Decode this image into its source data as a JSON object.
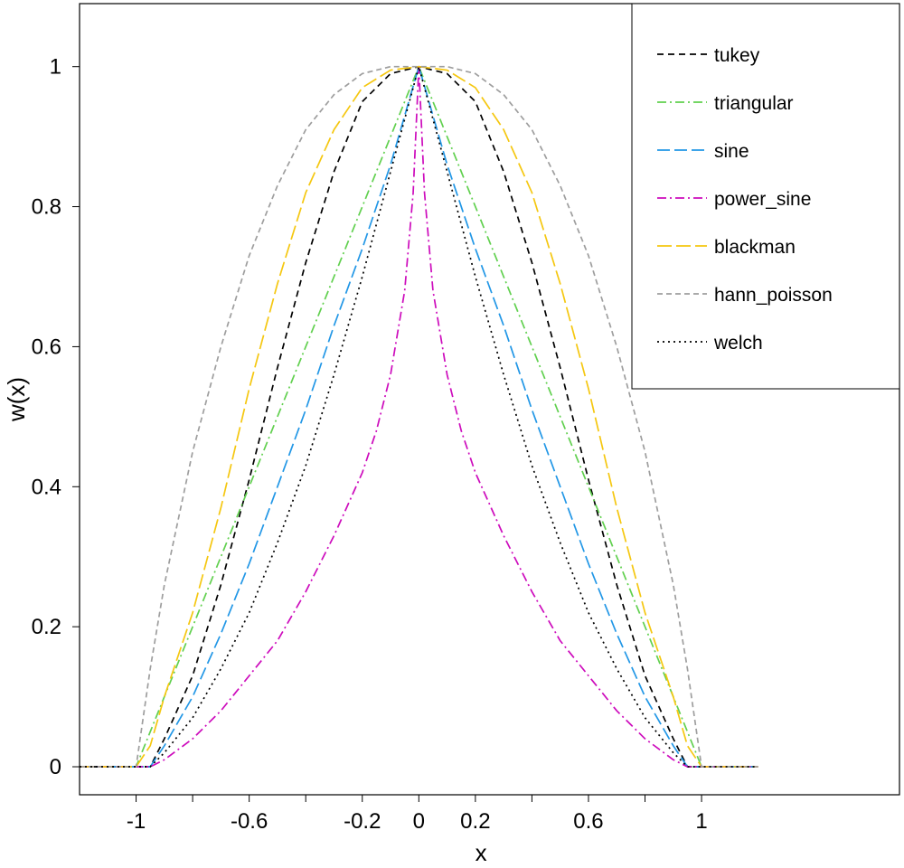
{
  "chart_data": {
    "type": "line",
    "title": "",
    "xlabel": "x",
    "ylabel": "w(x)",
    "xlim": [
      -1.2,
      1.7
    ],
    "ylim": [
      -0.04,
      1.09
    ],
    "x_ticks": [
      -1,
      -0.8,
      -0.6,
      -0.4,
      -0.2,
      0,
      0.2,
      0.4,
      0.6,
      0.8,
      1
    ],
    "x_tick_labels": [
      "-1",
      "",
      "-0.6",
      "",
      "-0.2",
      "0",
      "0.2",
      "",
      "0.6",
      "",
      "1"
    ],
    "y_ticks": [
      0,
      0.2,
      0.4,
      0.6,
      0.8,
      1
    ],
    "y_tick_labels": [
      "0",
      "0.2",
      "0.4",
      "0.6",
      "0.8",
      "1"
    ],
    "grid": false,
    "legend_position": "top-right",
    "x_domain": [
      -1.2,
      1.2
    ],
    "series": [
      {
        "name": "tukey",
        "color": "#000000",
        "dash": "7,5",
        "x": [
          -1.2,
          -1,
          -0.95,
          -0.9,
          -0.8,
          -0.7,
          -0.6,
          -0.5,
          -0.4,
          -0.3,
          -0.2,
          -0.1,
          0,
          0.1,
          0.2,
          0.3,
          0.4,
          0.5,
          0.6,
          0.7,
          0.8,
          0.9,
          0.95,
          1,
          1.2
        ],
        "y": [
          0,
          0,
          0.0,
          0.04,
          0.13,
          0.26,
          0.41,
          0.57,
          0.72,
          0.85,
          0.95,
          0.99,
          1,
          0.99,
          0.95,
          0.85,
          0.72,
          0.57,
          0.41,
          0.26,
          0.13,
          0.04,
          0.0,
          0,
          0
        ]
      },
      {
        "name": "triangular",
        "color": "#61d04f",
        "dash": "10,4,2,4",
        "x": [
          -1.2,
          -1,
          -0.5,
          0,
          0.5,
          1,
          1.2
        ],
        "y": [
          0,
          0,
          0.5,
          1,
          0.5,
          0,
          0
        ]
      },
      {
        "name": "sine",
        "color": "#2297e6",
        "dash": "14,5",
        "x": [
          -1.2,
          -0.95,
          -0.9,
          -0.8,
          -0.7,
          -0.6,
          -0.5,
          -0.4,
          -0.3,
          -0.2,
          -0.1,
          0,
          0.1,
          0.2,
          0.3,
          0.4,
          0.5,
          0.6,
          0.7,
          0.8,
          0.9,
          0.95,
          1.2
        ],
        "y": [
          0,
          0,
          0.03,
          0.1,
          0.19,
          0.29,
          0.4,
          0.51,
          0.63,
          0.74,
          0.86,
          1,
          0.86,
          0.74,
          0.63,
          0.51,
          0.4,
          0.29,
          0.19,
          0.1,
          0.03,
          0,
          0
        ]
      },
      {
        "name": "power_sine",
        "color": "#cd0bbc",
        "dash": "10,4,2,4",
        "x": [
          -1.2,
          -0.95,
          -0.9,
          -0.8,
          -0.7,
          -0.6,
          -0.5,
          -0.4,
          -0.3,
          -0.2,
          -0.15,
          -0.1,
          -0.05,
          -0.02,
          0,
          0.02,
          0.05,
          0.1,
          0.15,
          0.2,
          0.3,
          0.4,
          0.5,
          0.6,
          0.7,
          0.8,
          0.9,
          0.95,
          1.2
        ],
        "y": [
          0,
          0,
          0.01,
          0.04,
          0.08,
          0.13,
          0.18,
          0.25,
          0.33,
          0.42,
          0.48,
          0.56,
          0.68,
          0.82,
          1,
          0.82,
          0.68,
          0.56,
          0.48,
          0.42,
          0.33,
          0.25,
          0.18,
          0.13,
          0.08,
          0.04,
          0.01,
          0,
          0
        ]
      },
      {
        "name": "blackman",
        "color": "#f5c710",
        "dash": "16,5",
        "x": [
          -1.2,
          -1,
          -0.95,
          -0.9,
          -0.8,
          -0.7,
          -0.6,
          -0.5,
          -0.4,
          -0.3,
          -0.2,
          -0.1,
          0,
          0.1,
          0.2,
          0.3,
          0.4,
          0.5,
          0.6,
          0.7,
          0.8,
          0.9,
          0.95,
          1,
          1.2
        ],
        "y": [
          0,
          0,
          0.03,
          0.1,
          0.22,
          0.37,
          0.54,
          0.69,
          0.82,
          0.91,
          0.97,
          0.995,
          1,
          0.995,
          0.97,
          0.91,
          0.82,
          0.69,
          0.54,
          0.37,
          0.22,
          0.1,
          0.03,
          0,
          0
        ]
      },
      {
        "name": "hann_poisson",
        "color": "#9e9e9e",
        "dash": "6,4",
        "x": [
          -1.2,
          -1,
          -0.95,
          -0.9,
          -0.8,
          -0.7,
          -0.6,
          -0.5,
          -0.4,
          -0.3,
          -0.2,
          -0.1,
          0,
          0.1,
          0.2,
          0.3,
          0.4,
          0.5,
          0.6,
          0.7,
          0.8,
          0.9,
          0.95,
          1,
          1.2
        ],
        "y": [
          0,
          0,
          0.14,
          0.26,
          0.45,
          0.6,
          0.73,
          0.83,
          0.91,
          0.96,
          0.99,
          1.0,
          1,
          1.0,
          0.99,
          0.96,
          0.91,
          0.83,
          0.73,
          0.6,
          0.45,
          0.26,
          0.14,
          0,
          0
        ]
      },
      {
        "name": "welch",
        "color": "#000000",
        "dash": "2,4",
        "x": [
          -1.2,
          -0.95,
          -0.9,
          -0.8,
          -0.7,
          -0.6,
          -0.5,
          -0.4,
          -0.3,
          -0.2,
          -0.1,
          0,
          0.1,
          0.2,
          0.3,
          0.4,
          0.5,
          0.6,
          0.7,
          0.8,
          0.9,
          0.95,
          1.2
        ],
        "y": [
          0,
          0,
          0.02,
          0.07,
          0.14,
          0.22,
          0.32,
          0.43,
          0.56,
          0.7,
          0.85,
          1,
          0.85,
          0.7,
          0.56,
          0.43,
          0.32,
          0.22,
          0.14,
          0.07,
          0.02,
          0,
          0
        ]
      }
    ]
  }
}
